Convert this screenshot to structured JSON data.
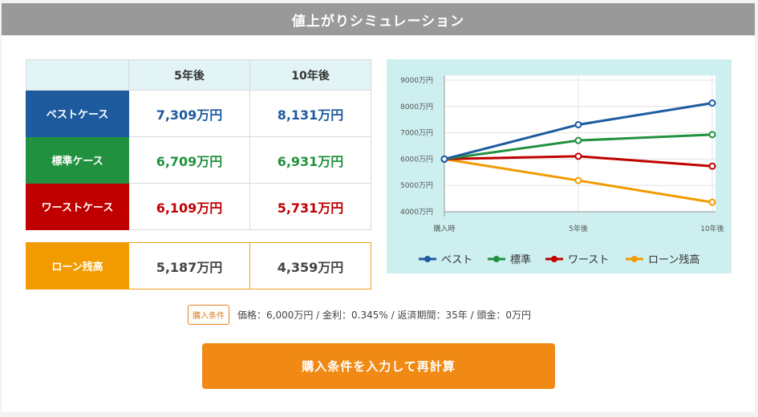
{
  "title": "値上がりシミュレーション",
  "table": {
    "headers": [
      "",
      "5年後",
      "10年後"
    ],
    "rows": [
      {
        "label": "ベストケース",
        "color": "#1e5b9e",
        "text_color": "#1e5b9e",
        "values": [
          "7,309",
          "8,131"
        ]
      },
      {
        "label": "標準ケース",
        "color": "#22913f",
        "text_color": "#22913f",
        "values": [
          "6,709",
          "6,931"
        ]
      },
      {
        "label": "ワーストケース",
        "color": "#c00000",
        "text_color": "#c00000",
        "values": [
          "6,109",
          "5,731"
        ]
      }
    ],
    "unit": "万円"
  },
  "loan": {
    "label": "ローン残高",
    "color": "#f29b00",
    "values": [
      "5,187",
      "4,359"
    ],
    "unit": "万円"
  },
  "chart_data": {
    "type": "line",
    "x": [
      "購入時",
      "5年後",
      "10年後"
    ],
    "yticks": [
      "9000万円",
      "8000万円",
      "7000万円",
      "6000万円",
      "5000万円",
      "4000万円"
    ],
    "ylim": [
      4000,
      9000
    ],
    "grid": true,
    "legend": "bottom",
    "series": [
      {
        "name": "ベスト",
        "color": "#1e5b9e",
        "values": [
          6000,
          7309,
          8131
        ]
      },
      {
        "name": "標準",
        "color": "#22913f",
        "values": [
          6000,
          6709,
          6931
        ]
      },
      {
        "name": "ワースト",
        "color": "#c00000",
        "values": [
          6000,
          6109,
          5731
        ]
      },
      {
        "name": "ローン残高",
        "color": "#f29b00",
        "values": [
          6000,
          5187,
          4359
        ]
      }
    ]
  },
  "conditions": {
    "badge": "購入条件",
    "text": "価格：6,000万円 / 金利：0.345% / 返済期間：35年 / 頭金：0万円"
  },
  "recalc_button": "購入条件を入力して再計算"
}
